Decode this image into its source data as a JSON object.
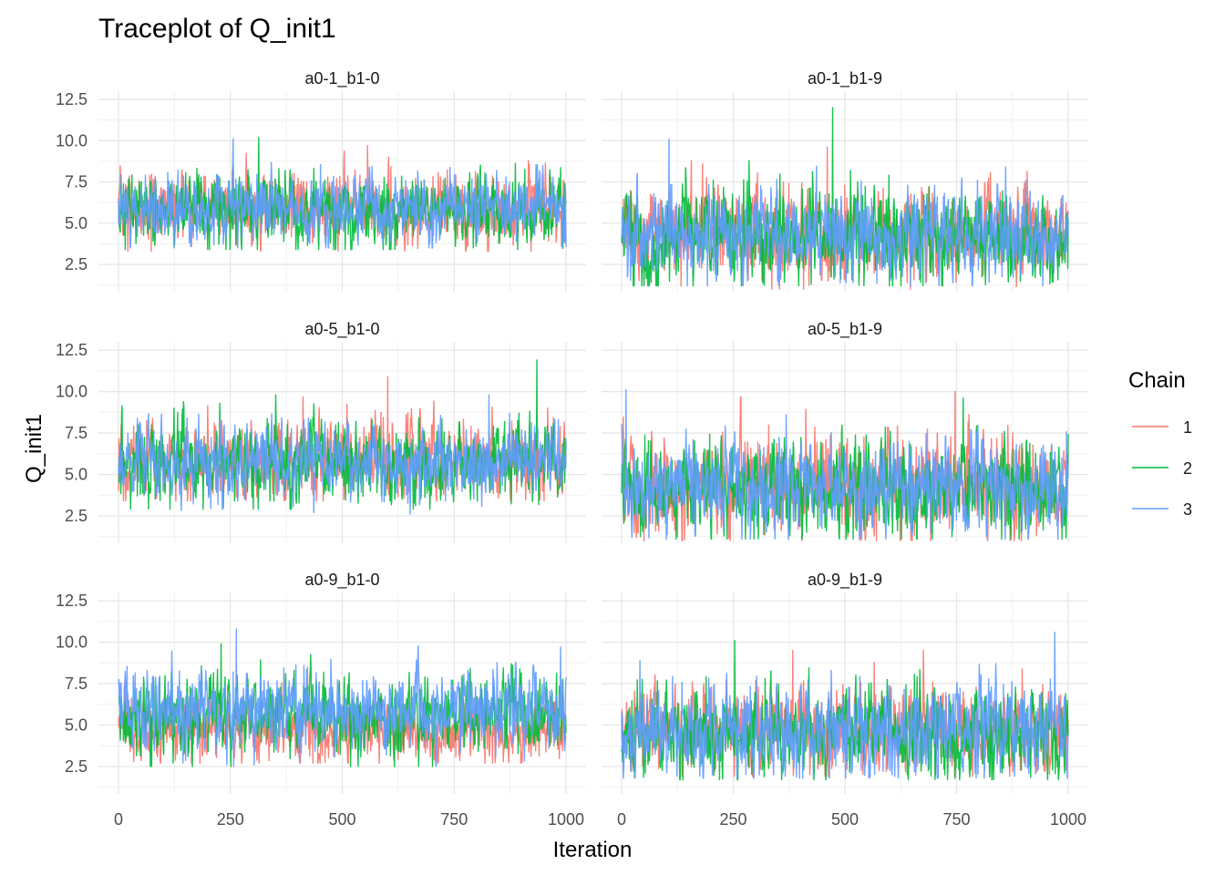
{
  "chart_data": {
    "type": "line",
    "title": "Traceplot of Q_init1",
    "xlabel": "Iteration",
    "ylabel": "Q_init1",
    "xlim": [
      0,
      1000
    ],
    "ylim": [
      0.85,
      13.0
    ],
    "x_ticks": [
      0,
      250,
      500,
      750,
      1000
    ],
    "y_ticks": [
      2.5,
      5.0,
      7.5,
      10.0,
      12.5
    ],
    "y_tick_labels": [
      "2.5",
      "5.0",
      "7.5",
      "10.0",
      "12.5"
    ],
    "grid": true,
    "legend": {
      "title": "Chain",
      "placement": "right",
      "entries": [
        {
          "label": "1",
          "color": "#F8766D"
        },
        {
          "label": "2",
          "color": "#00BA38"
        },
        {
          "label": "3",
          "color": "#619CFF"
        }
      ]
    },
    "n_iterations": 1000,
    "panels": [
      {
        "label": "a0-1_b1-0",
        "series": [
          {
            "name": "1",
            "mean": 5.9,
            "sd": 1.05,
            "max": 9.7,
            "min": 3.3
          },
          {
            "name": "2",
            "mean": 5.8,
            "sd": 1.05,
            "max": 10.2,
            "min": 3.4
          },
          {
            "name": "3",
            "mean": 5.9,
            "sd": 1.0,
            "max": 10.1,
            "min": 3.5
          }
        ]
      },
      {
        "label": "a0-1_b1-9",
        "series": [
          {
            "name": "1",
            "mean": 4.4,
            "sd": 1.35,
            "max": 9.6,
            "min": 1.0
          },
          {
            "name": "2",
            "mean": 4.2,
            "sd": 1.45,
            "max": 12.0,
            "min": 1.2
          },
          {
            "name": "3",
            "mean": 4.3,
            "sd": 1.3,
            "max": 10.1,
            "min": 1.2
          }
        ]
      },
      {
        "label": "a0-5_b1-0",
        "series": [
          {
            "name": "1",
            "mean": 5.9,
            "sd": 1.15,
            "max": 10.9,
            "min": 3.4
          },
          {
            "name": "2",
            "mean": 5.7,
            "sd": 1.2,
            "max": 11.9,
            "min": 2.9
          },
          {
            "name": "3",
            "mean": 5.8,
            "sd": 1.1,
            "max": 9.8,
            "min": 2.6
          }
        ]
      },
      {
        "label": "a0-5_b1-9",
        "series": [
          {
            "name": "1",
            "mean": 4.3,
            "sd": 1.45,
            "max": 10.0,
            "min": 1.0
          },
          {
            "name": "2",
            "mean": 4.2,
            "sd": 1.4,
            "max": 9.6,
            "min": 1.1
          },
          {
            "name": "3",
            "mean": 4.3,
            "sd": 1.35,
            "max": 10.1,
            "min": 1.1
          }
        ]
      },
      {
        "label": "a0-9_b1-0",
        "series": [
          {
            "name": "1",
            "mean": 4.7,
            "sd": 0.9,
            "max": 8.5,
            "min": 2.7
          },
          {
            "name": "2",
            "mean": 5.6,
            "sd": 1.1,
            "max": 9.9,
            "min": 2.5
          },
          {
            "name": "3",
            "mean": 5.9,
            "sd": 1.15,
            "max": 10.8,
            "min": 2.5
          }
        ]
      },
      {
        "label": "a0-9_b1-9",
        "series": [
          {
            "name": "1",
            "mean": 4.6,
            "sd": 1.3,
            "max": 9.5,
            "min": 1.9
          },
          {
            "name": "2",
            "mean": 4.4,
            "sd": 1.3,
            "max": 10.1,
            "min": 1.7
          },
          {
            "name": "3",
            "mean": 4.6,
            "sd": 1.35,
            "max": 10.6,
            "min": 1.8
          }
        ]
      }
    ]
  }
}
